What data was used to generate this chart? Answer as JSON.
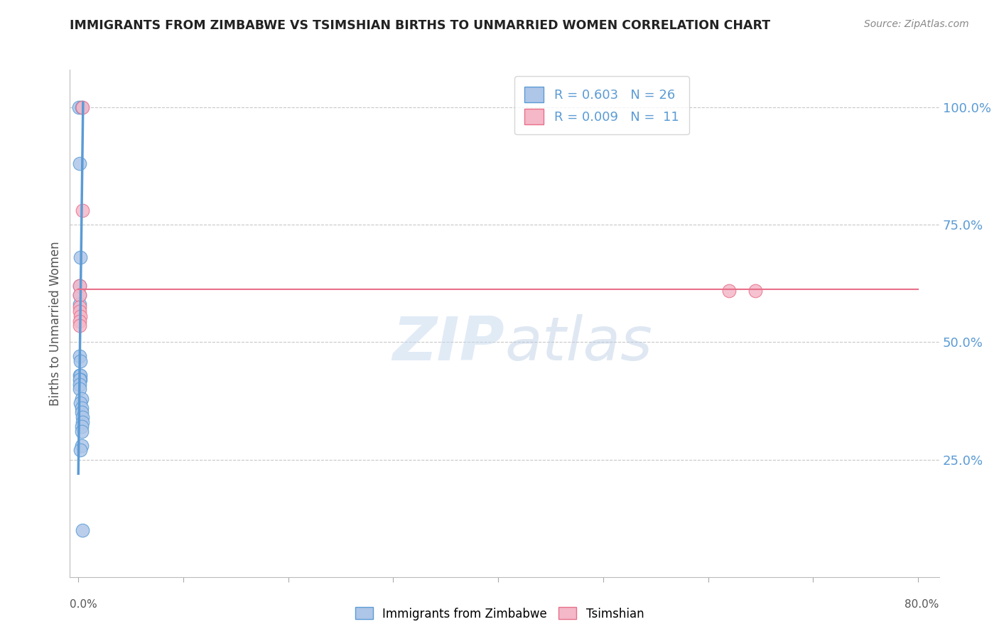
{
  "title": "IMMIGRANTS FROM ZIMBABWE VS TSIMSHIAN BIRTHS TO UNMARRIED WOMEN CORRELATION CHART",
  "source": "Source: ZipAtlas.com",
  "ylabel": "Births to Unmarried Women",
  "blue_scatter_x": [
    0.0008,
    0.003,
    0.001,
    0.002,
    0.001,
    0.001,
    0.0012,
    0.001,
    0.002,
    0.001,
    0.002,
    0.002,
    0.001,
    0.0015,
    0.001,
    0.003,
    0.002,
    0.003,
    0.003,
    0.004,
    0.004,
    0.003,
    0.003,
    0.003,
    0.002,
    0.004
  ],
  "blue_scatter_y": [
    1.0,
    1.0,
    0.88,
    0.68,
    0.62,
    0.6,
    0.58,
    0.47,
    0.46,
    0.43,
    0.43,
    0.42,
    0.42,
    0.41,
    0.4,
    0.38,
    0.37,
    0.36,
    0.35,
    0.34,
    0.33,
    0.32,
    0.31,
    0.28,
    0.27,
    0.1
  ],
  "pink_scatter_x": [
    0.004,
    0.004,
    0.001,
    0.001,
    0.001,
    0.001,
    0.002,
    0.001,
    0.001,
    0.62,
    0.645
  ],
  "pink_scatter_y": [
    1.0,
    0.78,
    0.62,
    0.6,
    0.575,
    0.565,
    0.555,
    0.545,
    0.535,
    0.61,
    0.61
  ],
  "blue_line_x": [
    0.0,
    0.0045
  ],
  "blue_line_y": [
    0.22,
    1.01
  ],
  "pink_line_x": [
    0.0,
    0.8
  ],
  "pink_line_y": [
    0.612,
    0.612
  ],
  "blue_color": "#5b9bd5",
  "pink_color": "#e8708a",
  "blue_scatter_color": "#aec6e8",
  "pink_scatter_color": "#f4b8c8",
  "watermark_zip": "ZIP",
  "watermark_atlas": "atlas",
  "background_color": "#ffffff",
  "grid_color": "#c8c8c8",
  "ytick_positions": [
    0.25,
    0.5,
    0.75,
    1.0
  ],
  "ytick_labels": [
    "25.0%",
    "50.0%",
    "75.0%",
    "100.0%"
  ],
  "xtick_positions": [
    0.0,
    0.1,
    0.2,
    0.3,
    0.4,
    0.5,
    0.6,
    0.7,
    0.8
  ],
  "xmin": -0.008,
  "xmax": 0.82,
  "ymin": 0.0,
  "ymax": 1.08
}
